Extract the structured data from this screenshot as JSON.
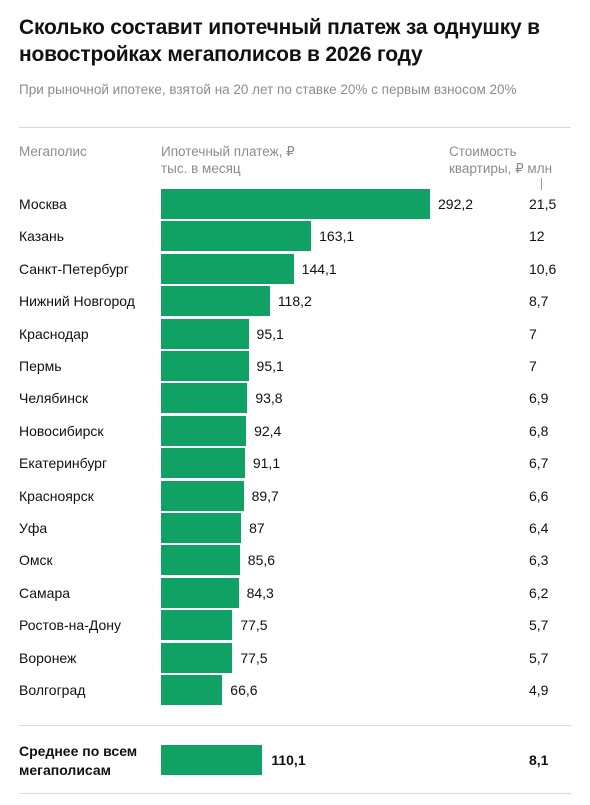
{
  "title": "Сколько составит ипотечный платеж за однушку в новостройках мегаполисов в 2026 году",
  "subtitle": "При рыночной ипотеке, взятой на 20 лет по ставке 20% с первым взносом 20%",
  "headers": {
    "city": "Мегаполис",
    "payment": "Ипотечный платеж, ₽ тыс. в месяц",
    "price": "Стоимость квартиры, ₽ млн"
  },
  "chart_data": {
    "type": "bar",
    "orientation": "horizontal",
    "categories": [
      "Москва",
      "Казань",
      "Санкт-Петербург",
      "Нижний Новгород",
      "Краснодар",
      "Пермь",
      "Челябинск",
      "Новосибирск",
      "Екатеринбург",
      "Красноярск",
      "Уфа",
      "Омск",
      "Самара",
      "Ростов-на-Дону",
      "Воронеж",
      "Волгоград"
    ],
    "series": [
      {
        "name": "Ипотечный платеж, ₽ тыс. в месяц",
        "values": [
          292.2,
          163.1,
          144.1,
          118.2,
          95.1,
          95.1,
          93.8,
          92.4,
          91.1,
          89.7,
          87,
          85.6,
          84.3,
          77.5,
          77.5,
          66.6
        ],
        "labels": [
          "292,2",
          "163,1",
          "144,1",
          "118,2",
          "95,1",
          "95,1",
          "93,8",
          "92,4",
          "91,1",
          "89,7",
          "87",
          "85,6",
          "84,3",
          "77,5",
          "77,5",
          "66,6"
        ]
      },
      {
        "name": "Стоимость квартиры, ₽ млн",
        "values": [
          21.5,
          12,
          10.6,
          8.7,
          7,
          7,
          6.9,
          6.8,
          6.7,
          6.6,
          6.4,
          6.3,
          6.2,
          5.7,
          5.7,
          4.9
        ],
        "labels": [
          "21,5",
          "12",
          "10,6",
          "8,7",
          "7",
          "7",
          "6,9",
          "6,8",
          "6,7",
          "6,6",
          "6,4",
          "6,3",
          "6,2",
          "5,7",
          "5,7",
          "4,9"
        ]
      }
    ],
    "average": {
      "label": "Среднее по всем мегаполисам",
      "payment": 110.1,
      "payment_label": "110,1",
      "price": 8.1,
      "price_label": "8,1"
    },
    "xlim": [
      0,
      292.2
    ],
    "grid": false,
    "legend": "none",
    "colors": {
      "bar": "#10a264",
      "text": "#111111",
      "muted": "#8c8c8c",
      "rule": "#d9d9d9"
    }
  }
}
